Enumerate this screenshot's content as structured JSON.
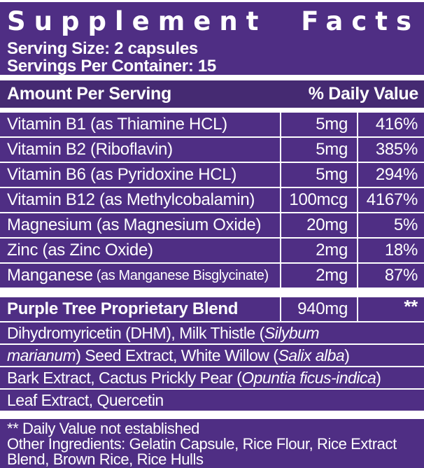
{
  "title": "Supplement Facts",
  "serving": {
    "size": "Serving Size: 2 capsules",
    "per_container": "Servings Per Container: 15"
  },
  "table": {
    "header": {
      "amount": "Amount Per Serving",
      "daily_value": "% Daily Value"
    },
    "rows": [
      {
        "name": "Vitamin B1 (as Thiamine HCL)",
        "amount": "5mg",
        "dv": "416%"
      },
      {
        "name": "Vitamin B2 (Riboflavin)",
        "amount": "5mg",
        "dv": "385%"
      },
      {
        "name": "Vitamin B6 (as Pyridoxine HCL)",
        "amount": "5mg",
        "dv": "294%"
      },
      {
        "name": "Vitamin B12 (as Methylcobalamin)",
        "amount": "100mcg",
        "dv": "4167%"
      },
      {
        "name": "Magnesium (as Magnesium Oxide)",
        "amount": "20mg",
        "dv": "5%"
      },
      {
        "name": "Zinc (as Zinc Oxide)",
        "amount": "2mg",
        "dv": "18%"
      },
      {
        "name": "Manganese",
        "note": "(as Manganese Bisglycinate)",
        "amount": "2mg",
        "dv": "87%"
      }
    ]
  },
  "blend": {
    "name": "Purple Tree Proprietary Blend",
    "amount": "940mg",
    "dv": "**",
    "description_lines": [
      [
        {
          "t": "Dihydromyricetin (DHM), Milk Thistle ("
        },
        {
          "t": "Silybum",
          "i": true
        }
      ],
      [
        {
          "t": "marianum",
          "i": true
        },
        {
          "t": ") Seed Extract, White Willow ("
        },
        {
          "t": "Salix alba",
          "i": true
        },
        {
          "t": ")"
        }
      ],
      [
        {
          "t": "Bark Extract, Cactus Prickly Pear ("
        },
        {
          "t": "Opuntia ficus-indica",
          "i": true
        },
        {
          "t": ")"
        }
      ],
      [
        {
          "t": "Leaf Extract, Quercetin"
        }
      ]
    ]
  },
  "footnotes": {
    "daily_value": "** Daily Value not established",
    "other_ingredients": "Other Ingredients: Gelatin Capsule, Rice Flour, Rice Extract",
    "other_ingredients_cutoff": "Blend, Brown Rice, Rice Hulls"
  },
  "colors": {
    "background_purple": "#4f2e84",
    "header_band_purple": "#452a72",
    "rule_white": "#ffffff",
    "text_white": "#ffffff"
  }
}
